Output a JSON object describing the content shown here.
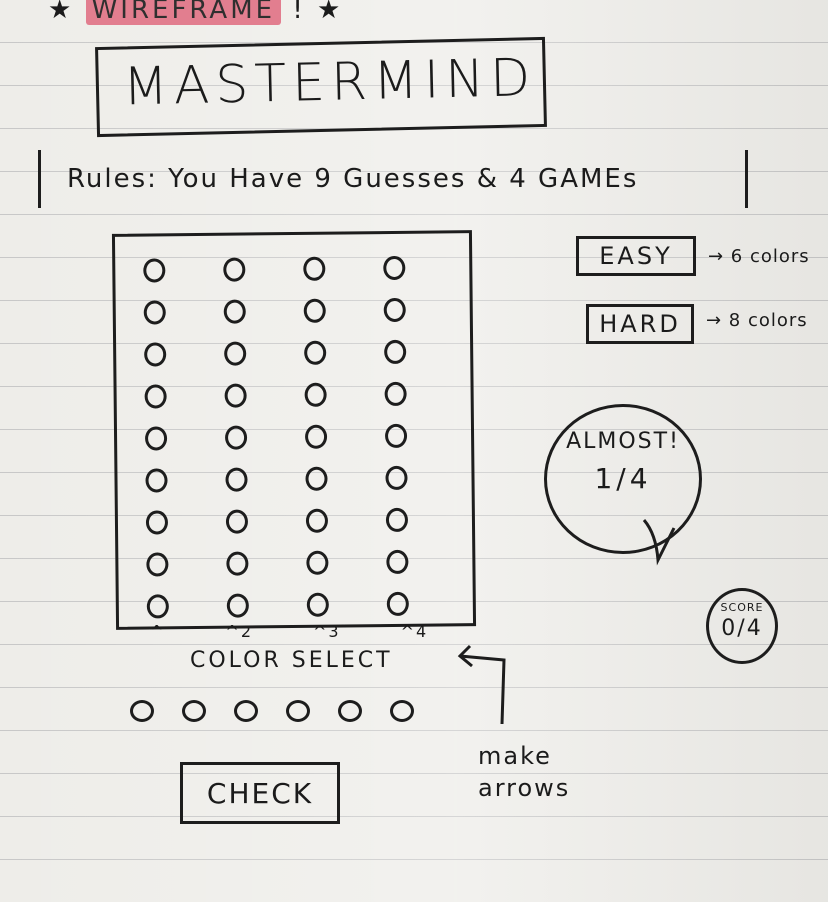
{
  "header": {
    "tag_prefix": "★",
    "tag_label": "WIREFRAME",
    "tag_suffix": "! ★"
  },
  "title": "MASTERMIND",
  "rules": "Rules: You Have 9 Guesses & 4 GAMEs",
  "board": {
    "rows": 9,
    "columns": 4,
    "column_markers": [
      "^",
      "^2",
      "^3",
      "^4"
    ]
  },
  "color_select": {
    "label": "COLOR SELECT",
    "options_count": 6
  },
  "check_label": "CHECK",
  "difficulty": {
    "easy_label": "EASY",
    "easy_note": "→ 6 colors",
    "hard_label": "HARD",
    "hard_note": "→ 8 colors"
  },
  "feedback": {
    "title": "ALMOST!",
    "count": "1/4"
  },
  "score": {
    "label": "SCORE",
    "value": "0/4"
  },
  "annotation": {
    "line1": "make",
    "line2": "arrows"
  }
}
